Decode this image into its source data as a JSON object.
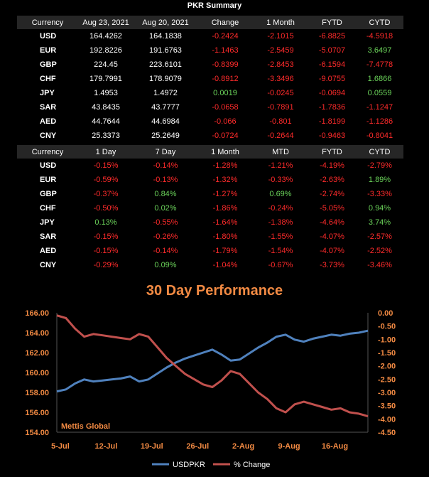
{
  "summary_title": "PKR Summary",
  "table1": {
    "headers": [
      "Currency",
      "Aug 23, 2021",
      "Aug 20, 2021",
      "Change",
      "1 Month",
      "FYTD",
      "CYTD"
    ],
    "rows": [
      [
        "USD",
        "164.4262",
        "164.1838",
        "-0.2424",
        "-2.1015",
        "-6.8825",
        "-4.5918"
      ],
      [
        "EUR",
        "192.8226",
        "191.6763",
        "-1.1463",
        "-2.5459",
        "-5.0707",
        "3.6497"
      ],
      [
        "GBP",
        "224.45",
        "223.6101",
        "-0.8399",
        "-2.8453",
        "-6.1594",
        "-7.4778"
      ],
      [
        "CHF",
        "179.7991",
        "178.9079",
        "-0.8912",
        "-3.3496",
        "-9.0755",
        "1.6866"
      ],
      [
        "JPY",
        "1.4953",
        "1.4972",
        "0.0019",
        "-0.0245",
        "-0.0694",
        "0.0559"
      ],
      [
        "SAR",
        "43.8435",
        "43.7777",
        "-0.0658",
        "-0.7891",
        "-1.7836",
        "-1.1247"
      ],
      [
        "AED",
        "44.7644",
        "44.6984",
        "-0.066",
        "-0.801",
        "-1.8199",
        "-1.1286"
      ],
      [
        "CNY",
        "25.3373",
        "25.2649",
        "-0.0724",
        "-0.2644",
        "-0.9463",
        "-0.8041"
      ]
    ]
  },
  "table2": {
    "headers": [
      "Currency",
      "1 Day",
      "7 Day",
      "1 Month",
      "MTD",
      "FYTD",
      "CYTD"
    ],
    "rows": [
      [
        "USD",
        "-0.15%",
        "-0.14%",
        "-1.28%",
        "-1.21%",
        "-4.19%",
        "-2.79%"
      ],
      [
        "EUR",
        "-0.59%",
        "-0.13%",
        "-1.32%",
        "-0.33%",
        "-2.63%",
        "1.89%"
      ],
      [
        "GBP",
        "-0.37%",
        "0.84%",
        "-1.27%",
        "0.69%",
        "-2.74%",
        "-3.33%"
      ],
      [
        "CHF",
        "-0.50%",
        "0.02%",
        "-1.86%",
        "-0.24%",
        "-5.05%",
        "0.94%"
      ],
      [
        "JPY",
        "0.13%",
        "-0.55%",
        "-1.64%",
        "-1.38%",
        "-4.64%",
        "3.74%"
      ],
      [
        "SAR",
        "-0.15%",
        "-0.26%",
        "-1.80%",
        "-1.55%",
        "-4.07%",
        "-2.57%"
      ],
      [
        "AED",
        "-0.15%",
        "-0.14%",
        "-1.79%",
        "-1.54%",
        "-4.07%",
        "-2.52%"
      ],
      [
        "CNY",
        "-0.29%",
        "0.09%",
        "-1.04%",
        "-0.67%",
        "-3.73%",
        "-3.46%"
      ]
    ]
  },
  "colors": {
    "positive": "#6bd35a",
    "negative": "#ff2b2b",
    "accent": "#f28a43",
    "usd_line": "#4f81bd",
    "pct_line": "#c0504d"
  },
  "chart_title": "30 Day Performance",
  "brand": "Mettis Global",
  "chart_data": {
    "type": "line",
    "title": "30 Day Performance",
    "categories": [
      "5-Jul",
      "12-Jul",
      "19-Jul",
      "26-Jul",
      "2-Aug",
      "9-Aug",
      "16-Aug"
    ],
    "yleft_ticks": [
      "166.00",
      "164.00",
      "162.00",
      "160.00",
      "158.00",
      "156.00",
      "154.00"
    ],
    "yright_ticks": [
      "0.00",
      "-0.50",
      "-1.00",
      "-1.50",
      "-2.00",
      "-2.50",
      "-3.00",
      "-3.50",
      "-4.00",
      "-4.50"
    ],
    "ylim_left": [
      154,
      166
    ],
    "ylim_right": [
      -4.5,
      0
    ],
    "x_range": [
      0,
      34
    ],
    "series": [
      {
        "name": "USDPKR",
        "axis": "left",
        "color": "#4f81bd",
        "x": [
          0,
          1,
          2,
          3,
          4,
          5,
          6,
          7,
          8,
          9,
          10,
          11,
          12,
          13,
          14,
          15,
          16,
          17,
          18,
          19,
          20,
          21,
          22,
          23,
          24,
          25,
          26,
          27,
          28,
          29,
          30,
          31,
          32,
          33,
          34
        ],
        "y": [
          158.1,
          158.3,
          158.9,
          159.3,
          159.1,
          159.2,
          159.3,
          159.4,
          159.6,
          159.1,
          159.3,
          159.9,
          160.5,
          161.0,
          161.4,
          161.7,
          162.0,
          162.3,
          161.8,
          161.2,
          161.3,
          161.9,
          162.5,
          163.0,
          163.6,
          163.8,
          163.3,
          163.1,
          163.4,
          163.6,
          163.8,
          163.7,
          163.9,
          164.0,
          164.2
        ]
      },
      {
        "name": "% Change",
        "axis": "right",
        "color": "#c0504d",
        "x": [
          0,
          1,
          2,
          3,
          4,
          5,
          6,
          7,
          8,
          9,
          10,
          11,
          12,
          13,
          14,
          15,
          16,
          17,
          18,
          19,
          20,
          21,
          22,
          23,
          24,
          25,
          26,
          27,
          28,
          29,
          30,
          31,
          32,
          33,
          34
        ],
        "y": [
          -0.1,
          -0.2,
          -0.6,
          -0.9,
          -0.8,
          -0.85,
          -0.9,
          -0.95,
          -1.0,
          -0.8,
          -0.9,
          -1.3,
          -1.7,
          -2.0,
          -2.3,
          -2.5,
          -2.7,
          -2.8,
          -2.55,
          -2.2,
          -2.3,
          -2.65,
          -3.0,
          -3.25,
          -3.6,
          -3.75,
          -3.45,
          -3.35,
          -3.45,
          -3.55,
          -3.65,
          -3.6,
          -3.75,
          -3.8,
          -3.9
        ]
      }
    ]
  }
}
